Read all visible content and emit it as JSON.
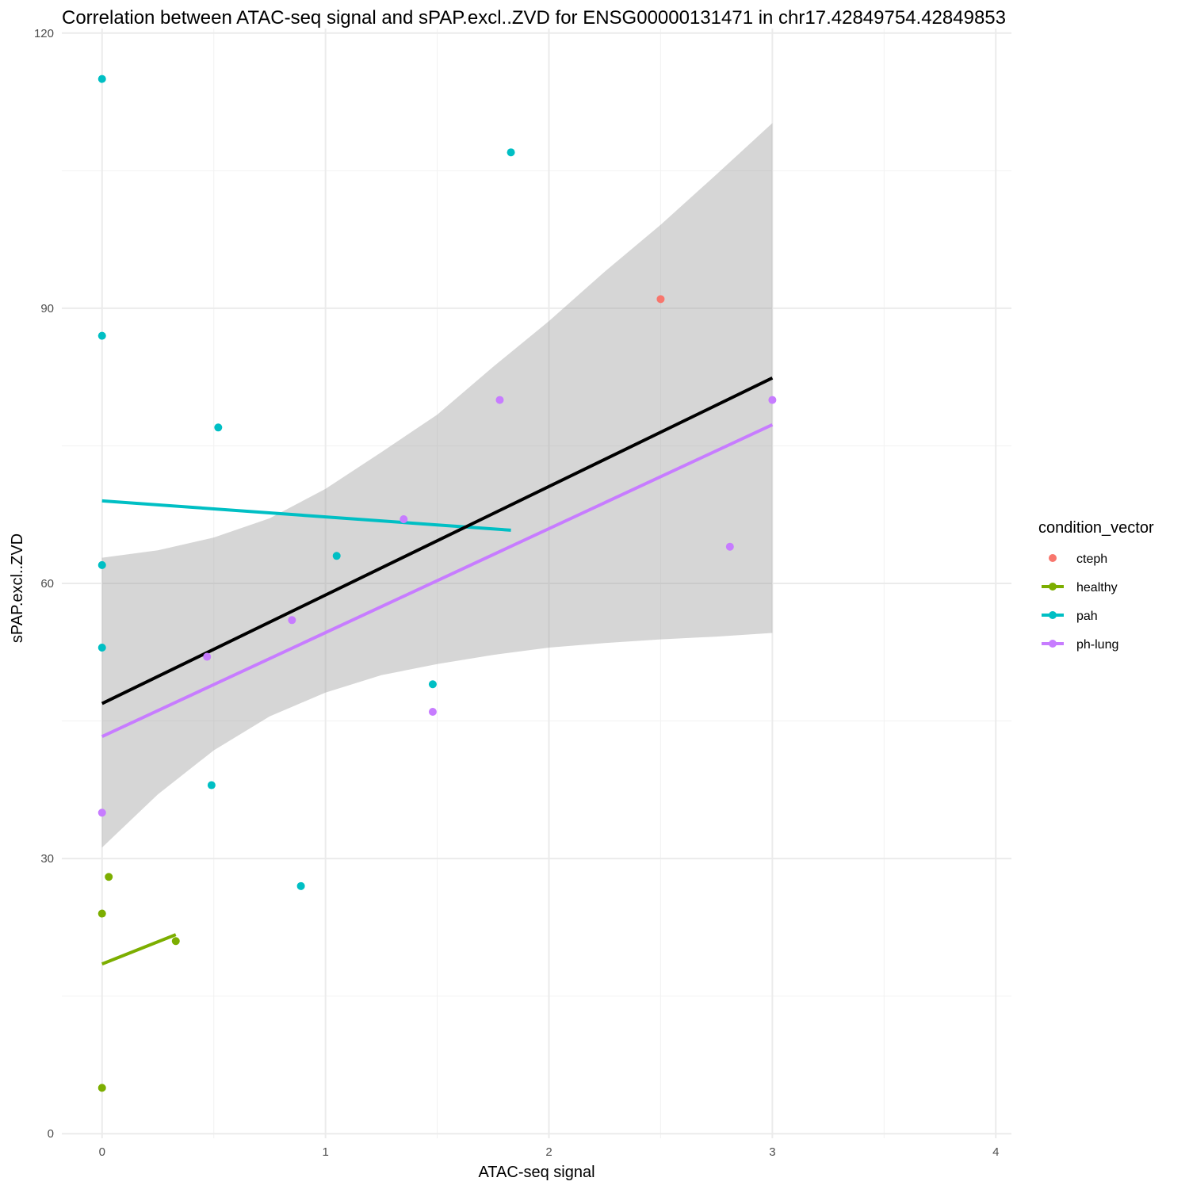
{
  "chart_data": {
    "type": "scatter",
    "title": "Correlation between ATAC-seq signal and sPAP.excl..ZVD for ENSG00000131471 in chr17.42849754.42849853",
    "xlabel": "ATAC-seq signal",
    "ylabel": "sPAP.excl..ZVD",
    "xlim": [
      -0.18,
      4.07
    ],
    "ylim": [
      -0.5,
      120.5
    ],
    "x_ticks": [
      "0",
      "1",
      "2",
      "3",
      "4"
    ],
    "x_tick_values": [
      0,
      1,
      2,
      3,
      4
    ],
    "y_ticks": [
      "0",
      "30",
      "60",
      "90",
      "120"
    ],
    "y_tick_values": [
      0,
      30,
      60,
      90,
      120
    ],
    "grid": true,
    "legend": {
      "title": "condition_vector",
      "position": "right",
      "entries": [
        {
          "label": "cteph",
          "color": "#F8766D"
        },
        {
          "label": "healthy",
          "color": "#7CAE00"
        },
        {
          "label": "pah",
          "color": "#00BFC4"
        },
        {
          "label": "ph-lung",
          "color": "#C77CFF"
        }
      ]
    },
    "series": [
      {
        "name": "cteph",
        "color": "#F8766D",
        "points": [
          [
            2.5,
            91
          ]
        ]
      },
      {
        "name": "healthy",
        "color": "#7CAE00",
        "points": [
          [
            0,
            5
          ],
          [
            0,
            24
          ],
          [
            0.03,
            28
          ],
          [
            0.33,
            21
          ]
        ]
      },
      {
        "name": "pah",
        "color": "#00BFC4",
        "points": [
          [
            0,
            115
          ],
          [
            0,
            87
          ],
          [
            0,
            62
          ],
          [
            0,
            53
          ],
          [
            0.52,
            77
          ],
          [
            0.49,
            38
          ],
          [
            0.89,
            27
          ],
          [
            1.05,
            63
          ],
          [
            1.48,
            49
          ],
          [
            1.83,
            107
          ]
        ]
      },
      {
        "name": "ph-lung",
        "color": "#C77CFF",
        "points": [
          [
            0,
            35
          ],
          [
            0.47,
            52
          ],
          [
            0.85,
            56
          ],
          [
            1.35,
            67
          ],
          [
            1.48,
            46
          ],
          [
            1.78,
            80
          ],
          [
            2.81,
            64
          ],
          [
            3.0,
            80
          ]
        ]
      }
    ],
    "group_fits": [
      {
        "name": "healthy",
        "color": "#7CAE00",
        "x": [
          0,
          0.33
        ],
        "y": [
          18.5,
          21.7
        ]
      },
      {
        "name": "pah",
        "color": "#00BFC4",
        "x": [
          0,
          1.83
        ],
        "y": [
          69.0,
          65.8
        ]
      },
      {
        "name": "ph-lung",
        "color": "#C77CFF",
        "x": [
          0,
          3.0
        ],
        "y": [
          43.3,
          77.3
        ]
      }
    ],
    "overall_fit": {
      "color": "#000000",
      "x": [
        0,
        3.0
      ],
      "y": [
        46.9,
        82.4
      ],
      "ci_band": {
        "x": [
          0,
          0.25,
          0.5,
          0.75,
          1.0,
          1.25,
          1.5,
          1.75,
          2.0,
          2.25,
          2.5,
          2.75,
          3.0
        ],
        "lower": [
          31.2,
          37.0,
          41.8,
          45.5,
          48.1,
          50.0,
          51.2,
          52.2,
          53.0,
          53.5,
          53.9,
          54.2,
          54.6
        ],
        "upper": [
          62.8,
          63.6,
          65.0,
          67.1,
          70.3,
          74.3,
          78.4,
          83.6,
          88.6,
          94.0,
          99.1,
          104.6,
          110.2
        ]
      }
    }
  }
}
